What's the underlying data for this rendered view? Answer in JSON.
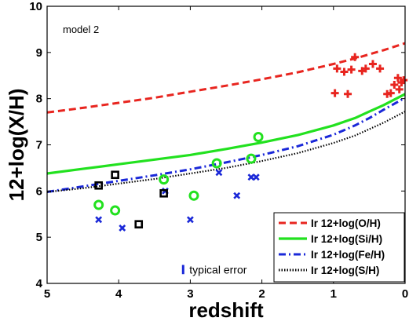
{
  "chart_data": {
    "type": "line",
    "annotation": "model 2",
    "xlabel": "redshift",
    "ylabel": "12+log(X/H)",
    "xlim": [
      5,
      0
    ],
    "ylim": [
      4,
      10
    ],
    "x_reversed": true,
    "x_ticks": [
      5,
      4,
      3,
      2,
      1,
      0
    ],
    "x_tick_labels": [
      "5",
      "4",
      "3",
      "2",
      "1",
      "0"
    ],
    "y_ticks": [
      4,
      5,
      6,
      7,
      8,
      9,
      10
    ],
    "y_tick_labels": [
      "4",
      "5",
      "6",
      "7",
      "8",
      "9",
      "10"
    ],
    "grid": false,
    "legend_position": "bottom-right",
    "series": [
      {
        "name": "Ir 12+log(O/H)",
        "color": "#e8251f",
        "style": "dashed",
        "x": [
          5,
          4.5,
          4,
          3.5,
          3,
          2.5,
          2,
          1.5,
          1,
          0.7,
          0.5,
          0.3,
          0
        ],
        "y": [
          7.7,
          7.8,
          7.91,
          8.02,
          8.15,
          8.28,
          8.42,
          8.57,
          8.75,
          8.87,
          8.96,
          9.05,
          9.2
        ]
      },
      {
        "name": "Ir 12+log(Si/H)",
        "color": "#22e11f",
        "style": "solid",
        "x": [
          5,
          4.5,
          4,
          3.5,
          3,
          2.5,
          2,
          1.5,
          1,
          0.7,
          0.5,
          0.3,
          0
        ],
        "y": [
          6.38,
          6.48,
          6.58,
          6.68,
          6.78,
          6.91,
          7.05,
          7.21,
          7.42,
          7.58,
          7.72,
          7.86,
          8.1
        ]
      },
      {
        "name": "Ir 12+log(Fe/H)",
        "color": "#1a28d8",
        "style": "dashdot",
        "x": [
          5,
          4.5,
          4,
          3.5,
          3,
          2.5,
          2,
          1.5,
          1,
          0.7,
          0.5,
          0.3,
          0
        ],
        "y": [
          5.98,
          6.1,
          6.22,
          6.34,
          6.47,
          6.62,
          6.78,
          6.97,
          7.22,
          7.42,
          7.58,
          7.76,
          8.02
        ]
      },
      {
        "name": "Ir 12+log(S/H)",
        "color": "#000000",
        "style": "dotted",
        "x": [
          5,
          4.5,
          4,
          3.5,
          3,
          2.5,
          2,
          1.5,
          1,
          0.7,
          0.5,
          0.3,
          0
        ],
        "y": [
          5.98,
          6.06,
          6.16,
          6.26,
          6.38,
          6.5,
          6.65,
          6.82,
          7.04,
          7.2,
          7.34,
          7.48,
          7.72
        ]
      }
    ],
    "observations": [
      {
        "marker": "plus",
        "color": "#e8251f",
        "points": [
          [
            0.95,
            8.65
          ],
          [
            0.85,
            8.58
          ],
          [
            0.75,
            8.63
          ],
          [
            0.7,
            8.9
          ],
          [
            0.6,
            8.6
          ],
          [
            0.55,
            8.65
          ],
          [
            0.45,
            8.75
          ],
          [
            0.35,
            8.65
          ],
          [
            0.25,
            8.1
          ],
          [
            0.2,
            8.12
          ],
          [
            0.15,
            8.3
          ],
          [
            0.1,
            8.45
          ],
          [
            0.08,
            8.2
          ],
          [
            0.05,
            8.35
          ],
          [
            0.02,
            8.4
          ],
          [
            0.98,
            8.12
          ],
          [
            0.8,
            8.1
          ]
        ]
      },
      {
        "marker": "circle",
        "color": "#22e11f",
        "points": [
          [
            4.28,
            5.7
          ],
          [
            4.05,
            5.58
          ],
          [
            3.37,
            6.25
          ],
          [
            2.95,
            5.9
          ],
          [
            2.63,
            6.6
          ],
          [
            2.15,
            6.7
          ],
          [
            2.05,
            7.17
          ]
        ]
      },
      {
        "marker": "cross",
        "color": "#1a28d8",
        "points": [
          [
            4.28,
            5.38
          ],
          [
            3.95,
            5.2
          ],
          [
            3.35,
            6.0
          ],
          [
            3.0,
            5.38
          ],
          [
            2.6,
            6.4
          ],
          [
            2.35,
            5.9
          ],
          [
            2.15,
            6.3
          ],
          [
            2.08,
            6.3
          ]
        ]
      },
      {
        "marker": "square",
        "color": "#000000",
        "points": [
          [
            4.28,
            6.12
          ],
          [
            4.05,
            6.35
          ],
          [
            3.72,
            5.28
          ],
          [
            3.37,
            5.95
          ]
        ]
      }
    ],
    "error_bar_label": "typical error",
    "error_bar_color": "#1a28d8",
    "error_bar_half_height": 0.1,
    "error_bar_x": 3.1,
    "error_bar_y": 4.3
  }
}
